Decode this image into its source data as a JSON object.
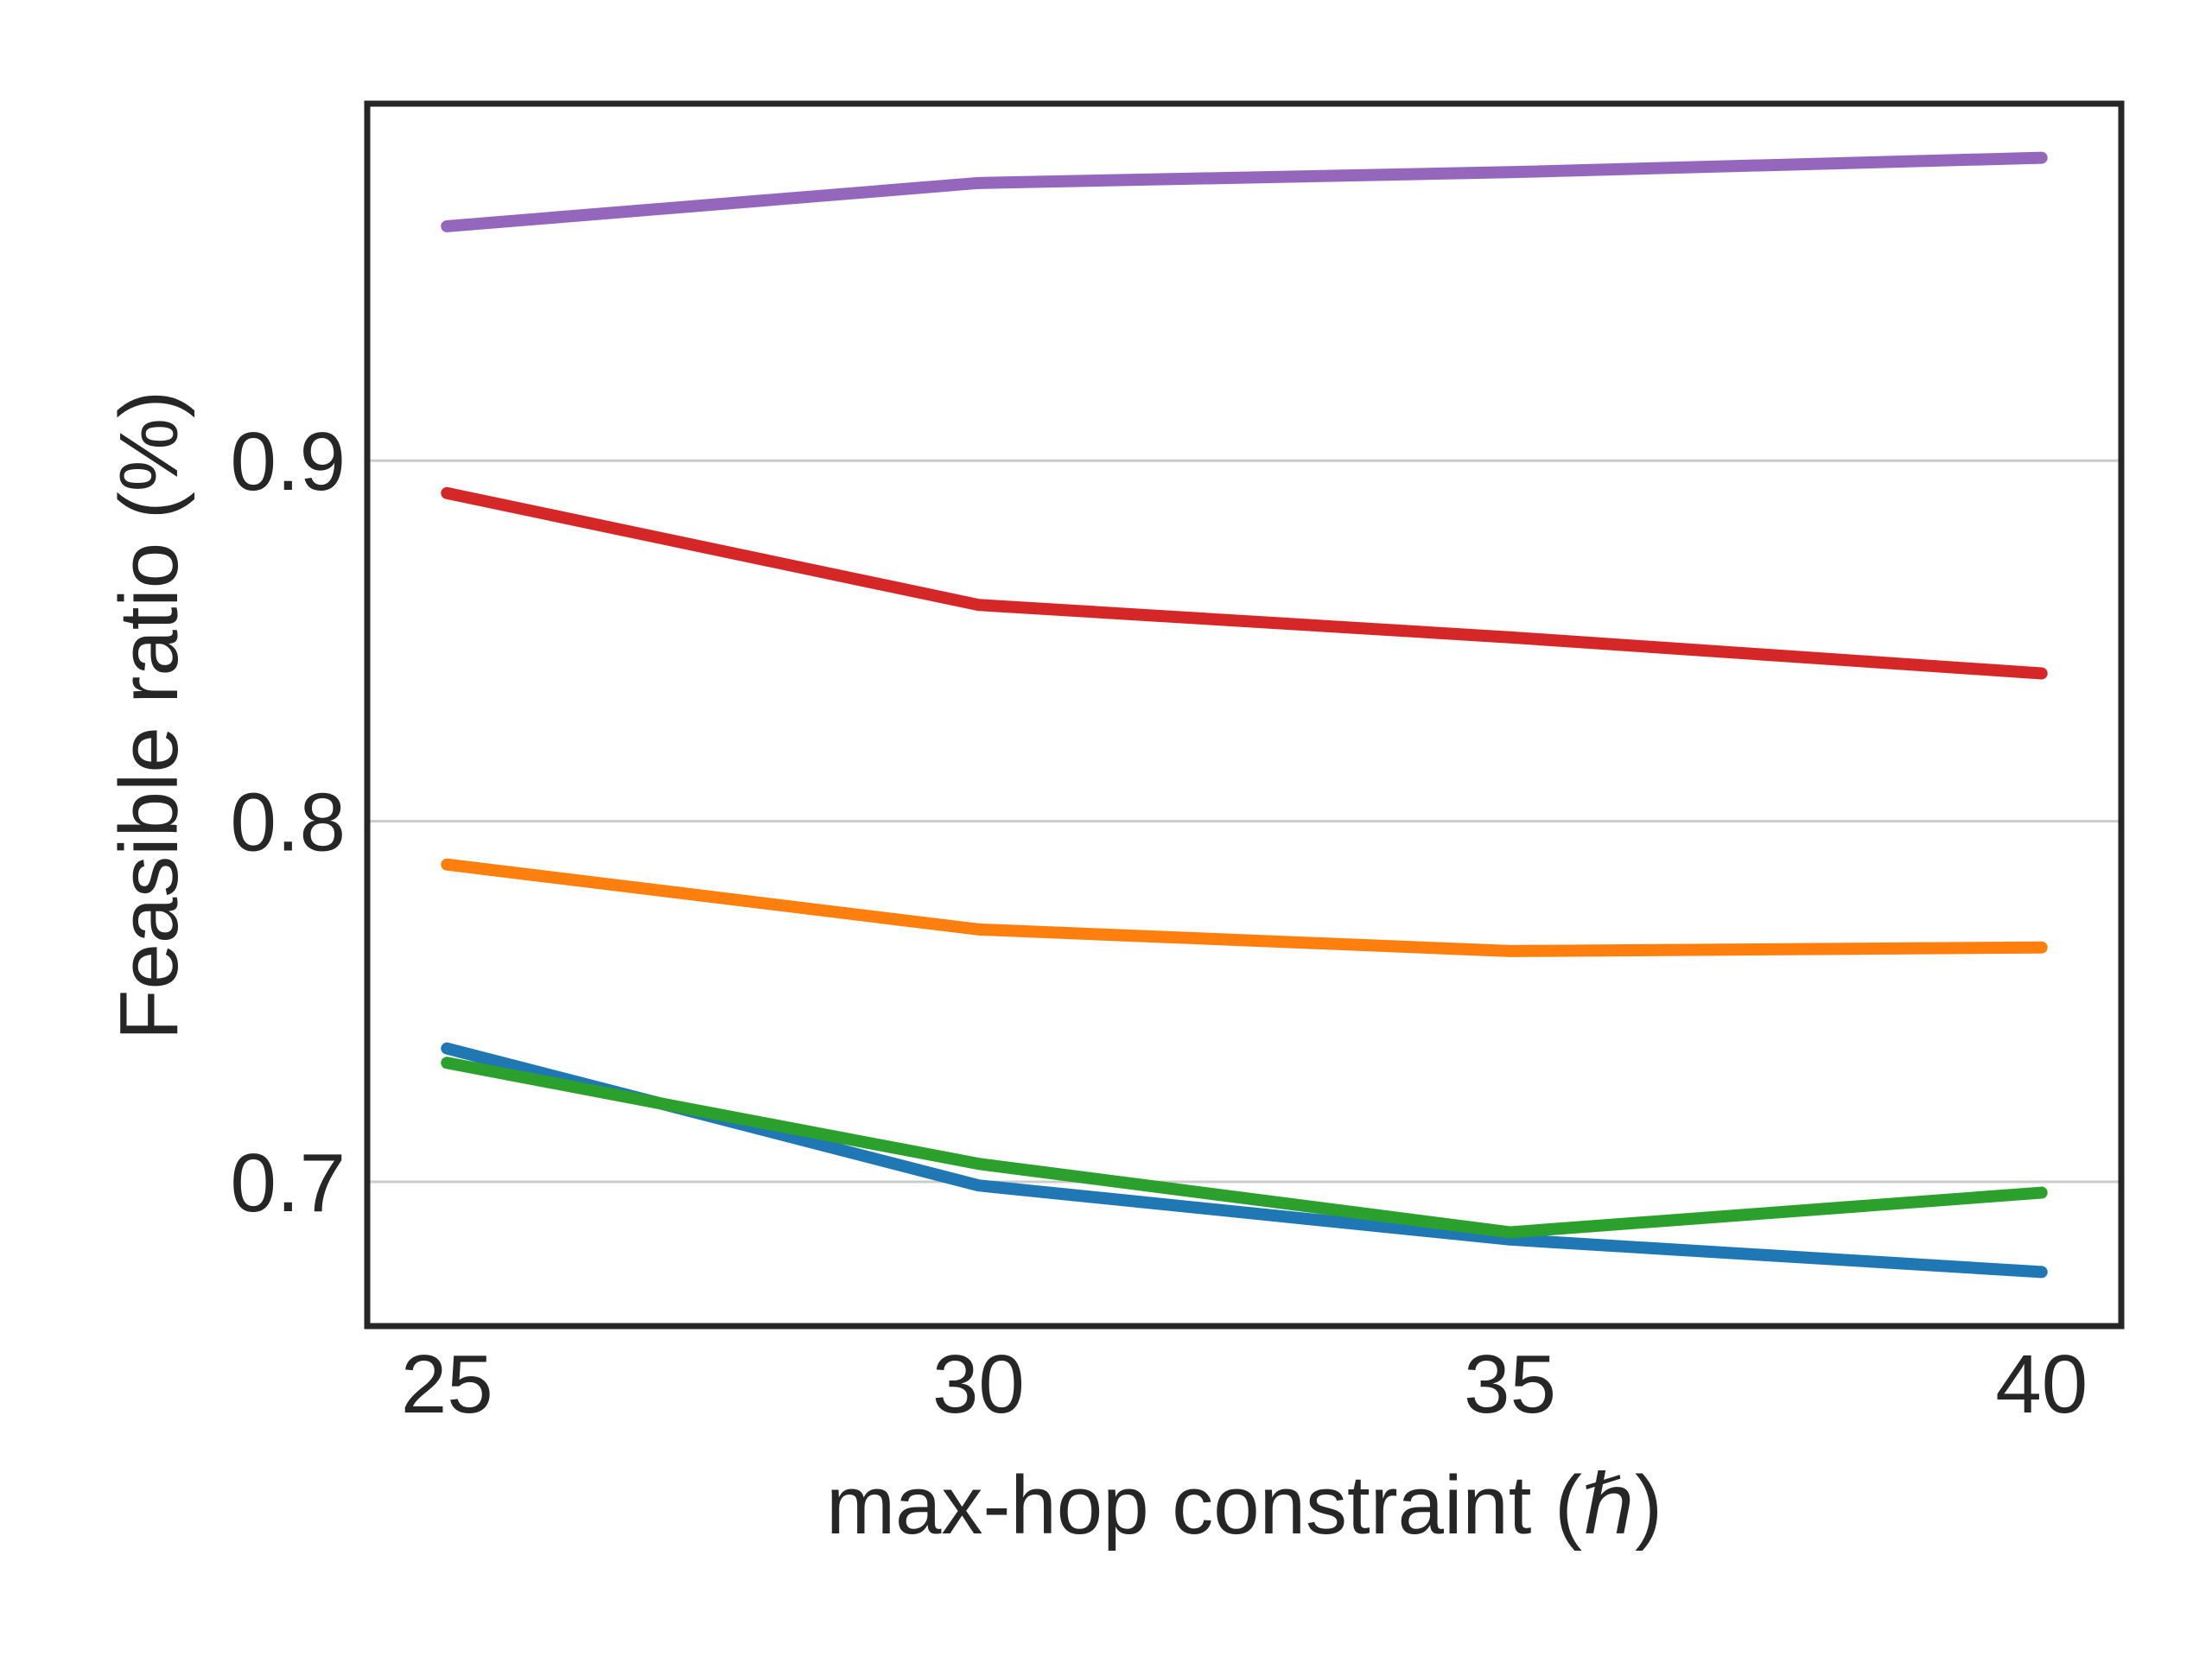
{
  "chart_data": {
    "type": "line",
    "title": "",
    "xlabel": "max-hop constraint (ℏ)",
    "ylabel": "Feasible ratio (%)",
    "x": [
      25,
      30,
      35,
      40
    ],
    "xticks": [
      "25",
      "30",
      "35",
      "40"
    ],
    "yticks": [
      {
        "value": 0.7,
        "label": "0.7"
      },
      {
        "value": 0.8,
        "label": "0.8"
      },
      {
        "value": 0.9,
        "label": "0.9"
      }
    ],
    "xlim": [
      24.25,
      40.75
    ],
    "ylim": [
      0.66,
      0.999
    ],
    "grid": "horizontal",
    "legend": "none",
    "series": [
      {
        "color": "#9467bd",
        "values": [
          0.965,
          0.977,
          0.98,
          0.984
        ]
      },
      {
        "color": "#d62728",
        "values": [
          0.891,
          0.86,
          0.851,
          0.841
        ]
      },
      {
        "color": "#ff7f0e",
        "values": [
          0.788,
          0.77,
          0.764,
          0.765
        ]
      },
      {
        "color": "#1f77b4",
        "values": [
          0.737,
          0.699,
          0.684,
          0.675
        ]
      },
      {
        "color": "#2ca02c",
        "values": [
          0.733,
          0.705,
          0.686,
          0.697
        ]
      }
    ]
  }
}
